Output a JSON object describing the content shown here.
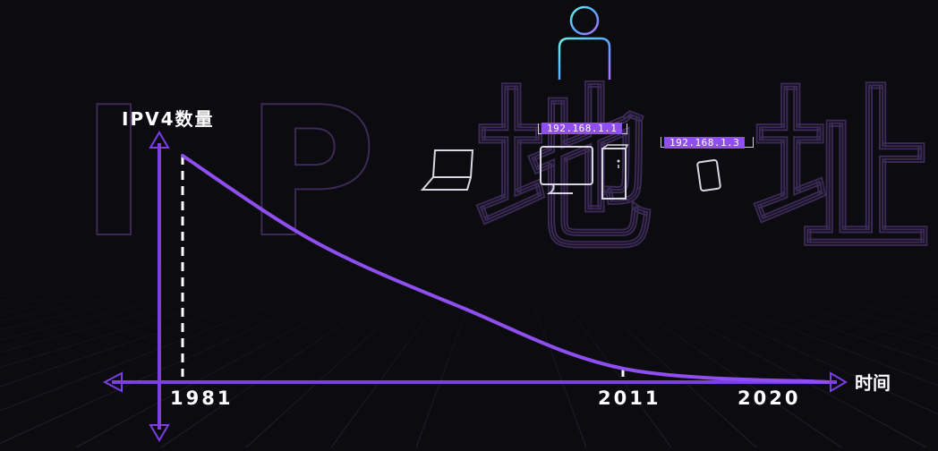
{
  "background_title": "I P 地 址",
  "y_axis_label": "IPV4数量",
  "x_axis_label": "时间",
  "devices": {
    "computer_ip": "192.168.1.1",
    "phone_ip": "192.168.1.3",
    "icons": [
      "user-icon",
      "laptop-icon",
      "desktop-computer-icon",
      "pc-tower-icon",
      "phone-icon"
    ]
  },
  "colors": {
    "background": "#0c0b10",
    "curve": "#8f4ff0",
    "axis": "#7b3fe4",
    "label_bg": "#8f4ff0",
    "text": "#ffffff"
  },
  "chart_data": {
    "type": "line",
    "title": "",
    "xlabel": "时间",
    "ylabel": "IPV4数量",
    "x_ticks": [
      "1981",
      "2011",
      "2020"
    ],
    "series": [
      {
        "values": [
          {
            "x": 1981,
            "y": 1.0
          },
          {
            "x": 1990,
            "y": 0.62
          },
          {
            "x": 2000,
            "y": 0.33
          },
          {
            "x": 2011,
            "y": 0.06
          },
          {
            "x": 2020,
            "y": 0.0
          }
        ]
      }
    ],
    "markers": [
      1981,
      2011
    ]
  }
}
